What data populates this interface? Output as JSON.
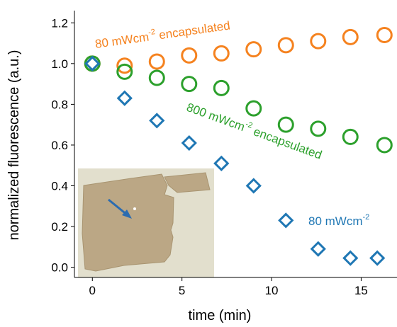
{
  "chart_data": {
    "type": "scatter",
    "x_label": "time (min)",
    "y_label": "normalized fluorescence (a.u.)",
    "xlim": [
      -1.0,
      17.0
    ],
    "ylim": [
      -0.05,
      1.26
    ],
    "xticks": [
      0,
      5,
      10,
      15
    ],
    "yticks": [
      {
        "value": 0,
        "label": "0.0"
      },
      0.2,
      0.4,
      0.6,
      0.8,
      {
        "value": 1,
        "label": "1.0"
      },
      1.2
    ],
    "series": [
      {
        "color": "#f5821f",
        "marker": "circle",
        "x": [
          0,
          1.8,
          3.6,
          5.4,
          7.2,
          9.0,
          10.8,
          12.6,
          14.4,
          16.3
        ],
        "values": [
          1.0,
          0.99,
          1.01,
          1.04,
          1.05,
          1.07,
          1.09,
          1.11,
          1.13,
          1.14
        ]
      },
      {
        "color": "#2ca02c",
        "marker": "circle",
        "x": [
          0,
          1.8,
          3.6,
          5.4,
          7.2,
          9.0,
          10.8,
          12.6,
          14.4,
          16.3
        ],
        "values": [
          1.0,
          0.96,
          0.93,
          0.9,
          0.88,
          0.78,
          0.7,
          0.68,
          0.64,
          0.6
        ]
      },
      {
        "color": "#1f77b4",
        "marker": "diamond",
        "x": [
          0,
          1.8,
          3.6,
          5.4,
          7.2,
          9.0,
          10.8,
          12.6,
          14.4,
          15.9
        ],
        "values": [
          1.0,
          0.83,
          0.72,
          0.61,
          0.51,
          0.4,
          0.23,
          0.09,
          0.045,
          0.045
        ]
      }
    ],
    "annotations": [
      {
        "text": "80 mWcm",
        "sup": "-2",
        "rest": " encapsulated",
        "color": "#f5821f"
      },
      {
        "text": "800 mWcm",
        "sup": "-2",
        "rest": " encapsulated",
        "color": "#2ca02c"
      },
      {
        "text": "80 mWcm",
        "sup": "-2",
        "rest": "",
        "color": "#1f77b4"
      }
    ]
  }
}
